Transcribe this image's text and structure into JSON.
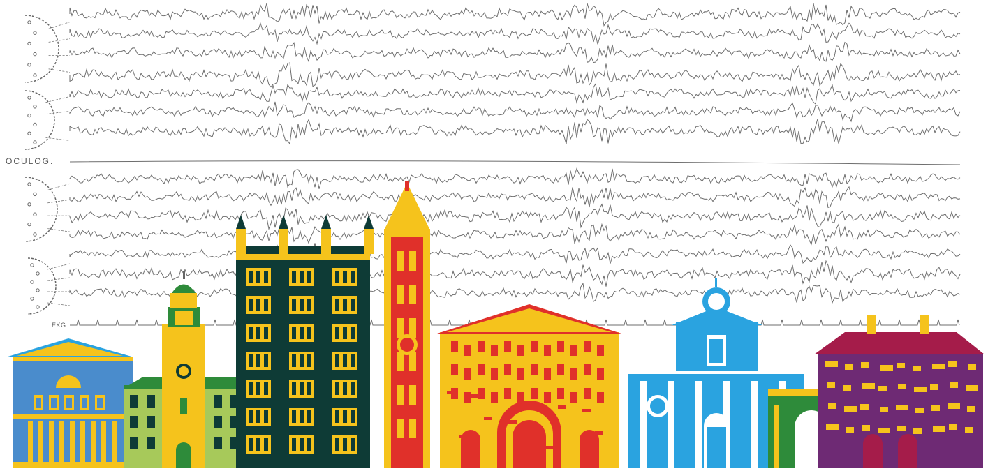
{
  "labels": {
    "oculog": "OCULOG.",
    "ekg": "EKG"
  },
  "colors": {
    "trace": "#6e6e6e",
    "blue": "#4a8ccc",
    "blue_light": "#2aa3e0",
    "yellow": "#f5c31c",
    "green_dark": "#0e3b36",
    "green_light": "#a7c95a",
    "green": "#2e8b3a",
    "red": "#e0302a",
    "purple": "#6e2a74",
    "maroon": "#a51c4a"
  },
  "icons": [
    "head-electrode-diagram",
    "eeg-trace",
    "building-teatro-regio",
    "building-palazzo-comunale",
    "building-pilotta",
    "building-baptistery-tower",
    "building-duomo",
    "building-church-dome",
    "building-arch",
    "building-palace-maroon"
  ]
}
